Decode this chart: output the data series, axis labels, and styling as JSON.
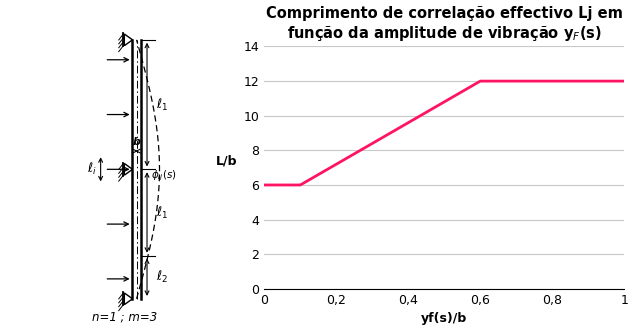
{
  "title": "Comprimento de correlação effectivo Lj em\nfunção da amplitude de vibração y$_F$(s)",
  "xlabel": "yf(s)/b",
  "ylabel": "L/b",
  "xlim": [
    0,
    1.0
  ],
  "ylim": [
    0,
    14
  ],
  "xticks": [
    0,
    0.2,
    0.4,
    0.6,
    0.8,
    1
  ],
  "xtick_labels": [
    "0",
    "0,2",
    "0,4",
    "0,6",
    "0,8",
    "1"
  ],
  "yticks": [
    0,
    2,
    4,
    6,
    8,
    10,
    12,
    14
  ],
  "line_x": [
    0,
    0.1,
    0.6,
    1.0
  ],
  "line_y": [
    6,
    6,
    12,
    12
  ],
  "line_color": "#FF1464",
  "line_width": 2.0,
  "grid_color": "#C8C8C8",
  "bg_color": "#FFFFFF",
  "title_fontsize": 10.5,
  "axis_label_fontsize": 9,
  "tick_fontsize": 9,
  "diagram_label": "n=1 ; m=3"
}
